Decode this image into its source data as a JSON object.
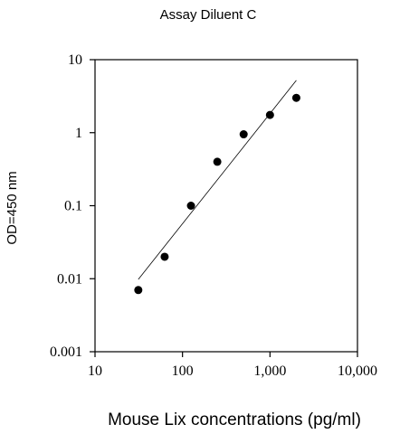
{
  "chart_data": {
    "type": "scatter",
    "title": "Assay Diluent C",
    "xlabel": "Mouse Lix concentrations (pg/ml)",
    "ylabel": "OD=450 nm",
    "x_scale": "log",
    "y_scale": "log",
    "xlim": [
      10,
      10000
    ],
    "ylim": [
      0.001,
      10
    ],
    "x_ticks": [
      10,
      100,
      1000,
      10000
    ],
    "x_tick_labels": [
      "10",
      "100",
      "1,000",
      "10,000"
    ],
    "y_ticks": [
      0.001,
      0.01,
      0.1,
      1,
      10
    ],
    "y_tick_labels": [
      "0.001",
      "0.01",
      "0.1",
      "1",
      "10"
    ],
    "grid": false,
    "series": [
      {
        "x": [
          31.25,
          62.5,
          125,
          250,
          500,
          1000,
          2000
        ],
        "y": [
          0.007,
          0.02,
          0.1,
          0.4,
          0.95,
          1.75,
          3.0
        ]
      }
    ],
    "fit_line": {
      "x": [
        31.25,
        2000
      ],
      "y": [
        0.0098,
        5.2
      ]
    },
    "colors": {
      "points": "#000000",
      "line": "#000000",
      "axes": "#000000"
    }
  }
}
